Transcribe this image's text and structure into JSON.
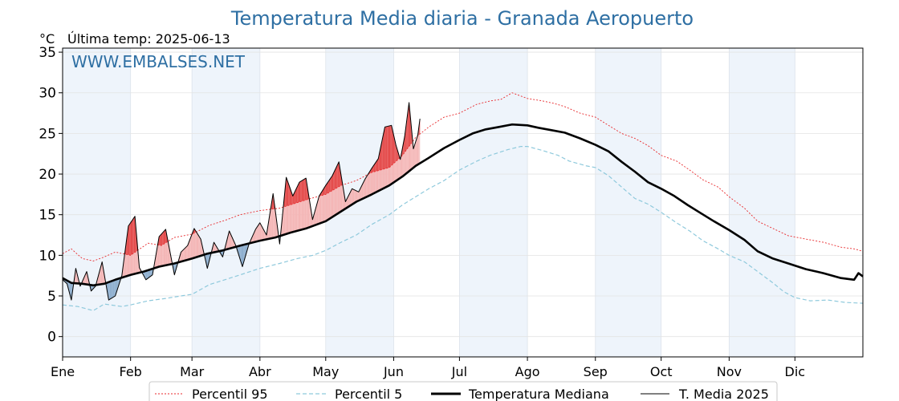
{
  "chart_data": {
    "type": "line",
    "title": "Temperatura Media diaria - Granada Aeropuerto",
    "unit_label": "°C",
    "last_temp_label": "Última temp: 2025-06-13",
    "watermark": "WWW.EMBALSES.NET",
    "ylim": [
      -2.5,
      35.5
    ],
    "yticks": [
      0,
      5,
      10,
      15,
      20,
      25,
      30,
      35
    ],
    "xlim": [
      1,
      366
    ],
    "months": [
      "Ene",
      "Feb",
      "Mar",
      "Abr",
      "May",
      "Jun",
      "Jul",
      "Ago",
      "Sep",
      "Oct",
      "Nov",
      "Dic"
    ],
    "month_start_days": [
      1,
      32,
      60,
      91,
      121,
      152,
      182,
      213,
      244,
      274,
      305,
      335
    ],
    "grid": true,
    "legend_position": "bottom",
    "colors": {
      "p95": "#e8282b",
      "p5": "#8ec9dc",
      "median": "#000000",
      "t2025": "#000000",
      "above_fill": "#f4b6b6",
      "above_fill_strong": "#e44b4b",
      "below_fill": "#8eafcf",
      "band": "#eef4fb"
    },
    "series": [
      {
        "key": "p95",
        "name": "Percentil 95",
        "x": [
          1,
          5,
          10,
          15,
          20,
          25,
          32,
          40,
          46,
          52,
          60,
          68,
          75,
          82,
          91,
          100,
          106,
          113,
          121,
          128,
          135,
          142,
          150,
          156,
          162,
          168,
          175,
          182,
          190,
          196,
          201,
          206,
          213,
          220,
          225,
          230,
          237,
          244,
          250,
          256,
          262,
          268,
          274,
          281,
          287,
          293,
          300,
          305,
          312,
          318,
          325,
          332,
          340,
          348,
          356,
          362,
          366
        ],
        "values": [
          10.2,
          10.8,
          9.6,
          9.3,
          9.8,
          10.4,
          10.0,
          11.5,
          11.2,
          12.2,
          12.6,
          13.7,
          14.3,
          15.0,
          15.5,
          15.8,
          16.3,
          16.9,
          17.5,
          18.6,
          19.2,
          20.2,
          20.8,
          22.3,
          24.5,
          25.8,
          27.0,
          27.5,
          28.6,
          29.0,
          29.2,
          30.0,
          29.3,
          29.0,
          28.7,
          28.3,
          27.5,
          27.0,
          26.0,
          25.0,
          24.4,
          23.5,
          22.3,
          21.6,
          20.5,
          19.3,
          18.4,
          17.2,
          15.8,
          14.2,
          13.3,
          12.4,
          12.0,
          11.6,
          11.0,
          10.8,
          10.5
        ]
      },
      {
        "key": "p5",
        "name": "Percentil 5",
        "x": [
          1,
          8,
          15,
          20,
          28,
          32,
          40,
          48,
          55,
          60,
          68,
          75,
          82,
          91,
          100,
          108,
          115,
          121,
          128,
          135,
          142,
          150,
          156,
          162,
          168,
          175,
          182,
          190,
          196,
          204,
          210,
          213,
          220,
          227,
          232,
          240,
          244,
          250,
          256,
          262,
          268,
          274,
          281,
          287,
          293,
          300,
          305,
          312,
          318,
          325,
          330,
          335,
          342,
          350,
          358,
          366
        ],
        "values": [
          3.9,
          3.7,
          3.2,
          4.0,
          3.7,
          3.9,
          4.4,
          4.7,
          5.0,
          5.2,
          6.4,
          7.0,
          7.6,
          8.4,
          9.0,
          9.6,
          10.0,
          10.6,
          11.6,
          12.5,
          13.8,
          15.0,
          16.2,
          17.2,
          18.2,
          19.2,
          20.5,
          21.6,
          22.3,
          23.0,
          23.4,
          23.4,
          22.9,
          22.3,
          21.6,
          21.0,
          20.8,
          19.8,
          18.4,
          17.0,
          16.3,
          15.3,
          14.0,
          13.0,
          11.8,
          10.8,
          10.0,
          9.2,
          8.0,
          6.6,
          5.5,
          4.8,
          4.4,
          4.5,
          4.2,
          4.1
        ]
      },
      {
        "key": "median",
        "name": "Temperatura Mediana",
        "x": [
          1,
          5,
          10,
          15,
          20,
          25,
          32,
          38,
          45,
          52,
          60,
          67,
          74,
          82,
          91,
          98,
          105,
          112,
          121,
          128,
          135,
          142,
          150,
          156,
          162,
          168,
          175,
          182,
          188,
          194,
          200,
          206,
          213,
          218,
          224,
          230,
          237,
          244,
          250,
          256,
          262,
          268,
          274,
          280,
          286,
          292,
          298,
          305,
          312,
          318,
          325,
          332,
          340,
          348,
          356,
          362,
          364,
          366
        ],
        "values": [
          7.2,
          6.6,
          6.5,
          6.3,
          6.5,
          7.0,
          7.6,
          8.0,
          8.6,
          9.0,
          9.6,
          10.2,
          10.6,
          11.2,
          11.8,
          12.2,
          12.8,
          13.3,
          14.2,
          15.4,
          16.6,
          17.5,
          18.6,
          19.7,
          21.0,
          22.0,
          23.2,
          24.2,
          25.0,
          25.5,
          25.8,
          26.1,
          26.0,
          25.7,
          25.4,
          25.1,
          24.4,
          23.6,
          22.8,
          21.5,
          20.3,
          19.0,
          18.2,
          17.3,
          16.2,
          15.2,
          14.2,
          13.1,
          11.9,
          10.5,
          9.6,
          9.0,
          8.3,
          7.8,
          7.2,
          7.0,
          7.8,
          7.4
        ]
      },
      {
        "key": "t2025",
        "name": "T. Media 2025",
        "x": [
          1,
          3,
          5,
          7,
          9,
          12,
          14,
          16,
          19,
          22,
          25,
          28,
          31,
          34,
          36,
          39,
          42,
          45,
          48,
          52,
          55,
          58,
          61,
          64,
          67,
          70,
          74,
          77,
          80,
          83,
          86,
          89,
          91,
          94,
          97,
          100,
          103,
          106,
          109,
          112,
          115,
          118,
          121,
          124,
          127,
          130,
          133,
          136,
          139,
          142,
          145,
          148,
          151,
          153,
          155,
          157,
          159,
          161,
          163,
          164
        ],
        "values": [
          7.0,
          6.5,
          4.5,
          8.4,
          6.2,
          8.0,
          5.6,
          6.2,
          9.2,
          4.5,
          5.0,
          7.5,
          13.6,
          14.8,
          8.5,
          7.0,
          7.6,
          12.3,
          13.2,
          7.6,
          10.4,
          11.2,
          13.3,
          12.0,
          8.4,
          11.6,
          9.8,
          13.0,
          11.2,
          8.6,
          11.4,
          13.2,
          14.0,
          12.5,
          17.6,
          11.4,
          19.6,
          17.3,
          19.0,
          19.5,
          14.4,
          17.3,
          18.6,
          19.8,
          21.5,
          16.6,
          18.2,
          17.8,
          19.4,
          20.7,
          21.9,
          25.8,
          26.0,
          23.6,
          21.8,
          24.6,
          28.8,
          23.1,
          24.8,
          26.8
        ]
      }
    ]
  }
}
